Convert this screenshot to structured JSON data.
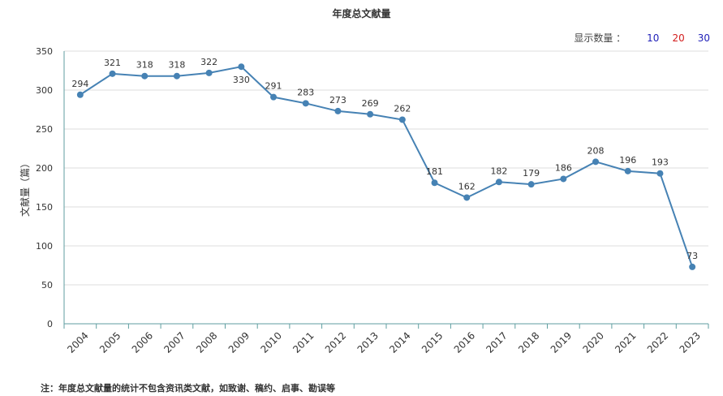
{
  "chart_data": {
    "type": "line",
    "title": "年度总文献量",
    "ylabel": "文献量（篇）",
    "xlabel": "",
    "ylim": [
      0,
      350
    ],
    "yticks": [
      0,
      50,
      100,
      150,
      200,
      250,
      300,
      350
    ],
    "grid": "horizontal",
    "categories": [
      "2004",
      "2005",
      "2006",
      "2007",
      "2008",
      "2009",
      "2010",
      "2011",
      "2012",
      "2013",
      "2014",
      "2015",
      "2016",
      "2017",
      "2018",
      "2019",
      "2020",
      "2021",
      "2022",
      "2023"
    ],
    "series": [
      {
        "values": [
          294,
          321,
          318,
          318,
          322,
          330,
          291,
          283,
          273,
          269,
          262,
          181,
          162,
          182,
          179,
          186,
          208,
          196,
          193,
          73
        ]
      }
    ],
    "colors": {
      "line": "#4682b4",
      "point": "#4682b4",
      "axis": "#5f9ea0",
      "grid": "#dcdcdc"
    }
  },
  "selector": {
    "label": "显示数量 ：",
    "options": [
      "10",
      "20",
      "30"
    ]
  },
  "footnote": "注：年度总文献量的统计不包含资讯类文献，如致谢、稿约、启事、勘误等"
}
